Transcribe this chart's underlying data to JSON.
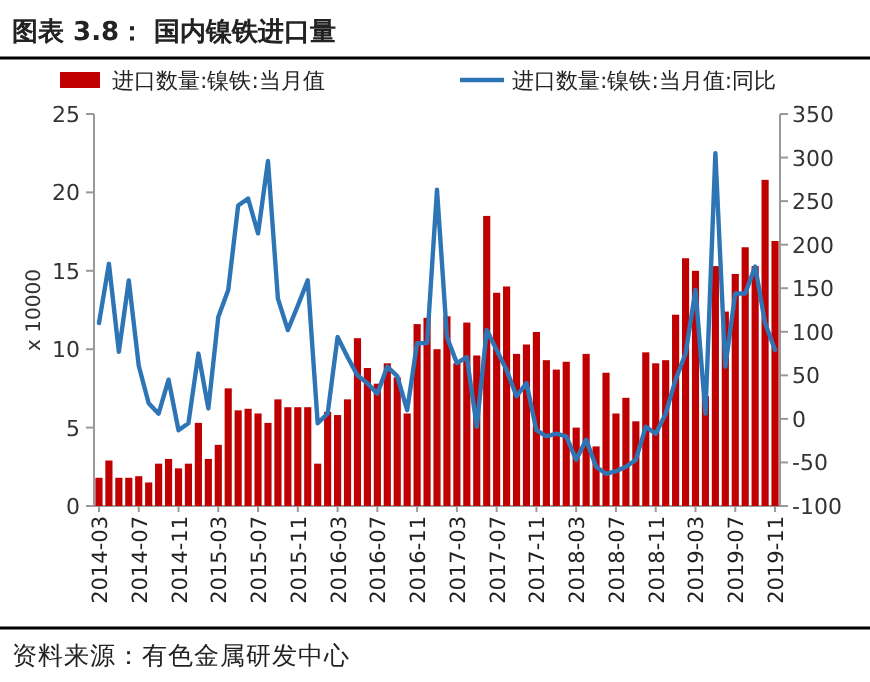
{
  "chart_data": {
    "type": "bar",
    "title": "图表 3.8：  国内镍铁进口量",
    "categories": [
      "2014-03",
      null,
      null,
      null,
      "2014-07",
      null,
      null,
      null,
      "2014-11",
      null,
      null,
      null,
      "2015-03",
      null,
      null,
      null,
      "2015-07",
      null,
      null,
      null,
      "2015-11",
      null,
      null,
      null,
      "2016-03",
      null,
      null,
      null,
      "2016-07",
      null,
      null,
      null,
      "2016-11",
      null,
      null,
      null,
      "2017-03",
      null,
      null,
      null,
      "2017-07",
      null,
      null,
      null,
      "2017-11",
      null,
      null,
      null,
      "2018-03",
      null,
      null,
      null,
      "2018-07",
      null,
      null,
      null,
      "2018-11",
      null,
      null,
      null,
      "2019-03",
      null,
      null,
      null,
      "2019-07",
      null,
      null,
      null,
      "2019-11"
    ],
    "series": [
      {
        "name": "进口数量:镍铁:当月值",
        "color": "#c00000",
        "values": [
          1.8,
          2.9,
          1.8,
          1.8,
          1.9,
          1.5,
          2.7,
          3.0,
          2.4,
          2.7,
          5.3,
          3.0,
          3.9,
          7.5,
          6.1,
          6.2,
          5.9,
          5.3,
          6.8,
          6.3,
          6.3,
          6.3,
          2.7,
          6.0,
          5.8,
          6.8,
          10.7,
          8.8,
          7.8,
          9.1,
          8.2,
          5.9,
          11.6,
          12.0,
          10.0,
          12.1,
          9.1,
          11.7,
          9.6,
          18.5,
          13.6,
          14.0,
          9.7,
          10.3,
          11.1,
          9.3,
          8.7,
          9.2,
          5.0,
          9.7,
          3.8,
          8.5,
          5.9,
          6.9,
          5.4,
          9.8,
          9.1,
          9.3,
          12.2,
          15.8,
          15.0,
          7.0,
          15.3,
          12.4,
          14.8,
          16.5,
          15.3,
          20.8,
          16.9
        ]
      },
      {
        "name": "进口数量:镍铁:当月值:同比",
        "type": "line",
        "axis": "y2",
        "color": "#2e75b6",
        "values": [
          110,
          178,
          77,
          159,
          61,
          18,
          6,
          45,
          -13,
          -5,
          75,
          12,
          117,
          148,
          245,
          253,
          213,
          296,
          138,
          102,
          130,
          159,
          -5,
          6,
          94,
          71,
          50,
          41,
          29,
          60,
          49,
          10,
          87,
          87,
          263,
          94,
          64,
          71,
          -9,
          102,
          79,
          56,
          26,
          41,
          -13,
          -20,
          -17,
          -20,
          -47,
          -24,
          -55,
          -63,
          -60,
          -55,
          -47,
          -9,
          -17,
          6,
          45,
          75,
          148,
          6,
          305,
          60,
          144,
          144,
          175,
          110,
          79
        ]
      }
    ],
    "ylabel": "x 10000",
    "ylim": [
      0,
      25
    ],
    "yticks": [
      0,
      5,
      10,
      15,
      20,
      25
    ],
    "y2lim": [
      -100,
      350
    ],
    "y2ticks": [
      -100,
      -50,
      0,
      50,
      100,
      150,
      200,
      250,
      300,
      350
    ],
    "legend": "top",
    "grid": false,
    "annotations": [
      "资料来源：有色金属研发中心"
    ]
  }
}
